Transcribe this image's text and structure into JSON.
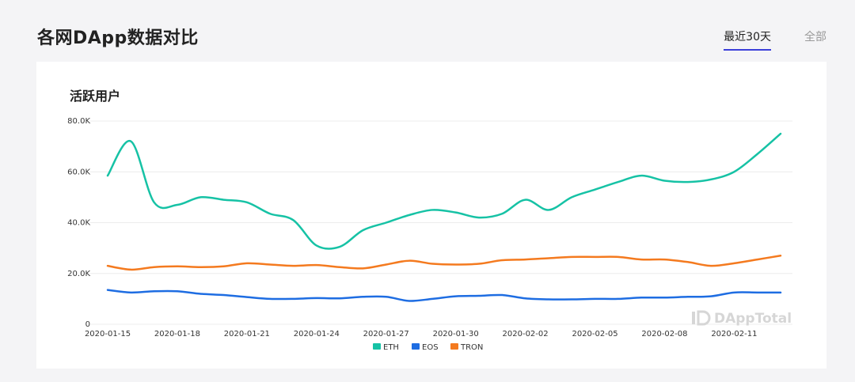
{
  "header": {
    "title": "各网DApp数据对比",
    "tabs": [
      {
        "label": "最近30天",
        "active": true
      },
      {
        "label": "全部",
        "active": false
      }
    ]
  },
  "card": {
    "title": "活跃用户"
  },
  "watermark": {
    "text": "DAppTotal",
    "icon": "dapptotal-logo-icon"
  },
  "colors": {
    "ETH": "#16c2a5",
    "EOS": "#1e6de2",
    "TRON": "#f47a1f",
    "tab_underline": "#3b3fd9"
  },
  "chart_data": {
    "type": "line",
    "title": "活跃用户",
    "legend_position": "bottom-center",
    "grid": true,
    "x": [
      "2020-01-15",
      "2020-01-16",
      "2020-01-17",
      "2020-01-18",
      "2020-01-19",
      "2020-01-20",
      "2020-01-21",
      "2020-01-22",
      "2020-01-23",
      "2020-01-24",
      "2020-01-25",
      "2020-01-26",
      "2020-01-27",
      "2020-01-28",
      "2020-01-29",
      "2020-01-30",
      "2020-01-31",
      "2020-02-01",
      "2020-02-02",
      "2020-02-03",
      "2020-02-04",
      "2020-02-05",
      "2020-02-06",
      "2020-02-07",
      "2020-02-08",
      "2020-02-09",
      "2020-02-10",
      "2020-02-11",
      "2020-02-12",
      "2020-02-13"
    ],
    "x_tick_labels": [
      "2020-01-15",
      "2020-01-18",
      "2020-01-21",
      "2020-01-24",
      "2020-01-27",
      "2020-01-30",
      "2020-02-02",
      "2020-02-05",
      "2020-02-08",
      "2020-02-11"
    ],
    "y_tick_labels": [
      "0",
      "20.0K",
      "40.0K",
      "60.0K",
      "80.0K"
    ],
    "ylim": [
      0,
      80000
    ],
    "series": [
      {
        "name": "ETH",
        "values": [
          58500,
          72000,
          48000,
          47000,
          50000,
          49000,
          48000,
          43500,
          41000,
          31000,
          30500,
          37000,
          40000,
          43000,
          45000,
          44000,
          42000,
          43500,
          49000,
          45000,
          50000,
          53000,
          56000,
          58500,
          56500,
          56000,
          57000,
          60000,
          67000,
          75000
        ]
      },
      {
        "name": "EOS",
        "values": [
          13500,
          12500,
          13000,
          13000,
          12000,
          11500,
          10700,
          10000,
          10000,
          10300,
          10200,
          10800,
          10800,
          9200,
          10000,
          11000,
          11200,
          11500,
          10200,
          9800,
          9800,
          10000,
          10000,
          10500,
          10500,
          10800,
          11000,
          12500,
          12500,
          12500
        ]
      },
      {
        "name": "TRON",
        "values": [
          23000,
          21500,
          22500,
          22800,
          22500,
          22800,
          24000,
          23500,
          23000,
          23300,
          22500,
          22000,
          23500,
          25000,
          23800,
          23500,
          23800,
          25200,
          25500,
          26000,
          26500,
          26500,
          26500,
          25500,
          25500,
          24500,
          23000,
          24000,
          25500,
          27000
        ]
      }
    ]
  }
}
